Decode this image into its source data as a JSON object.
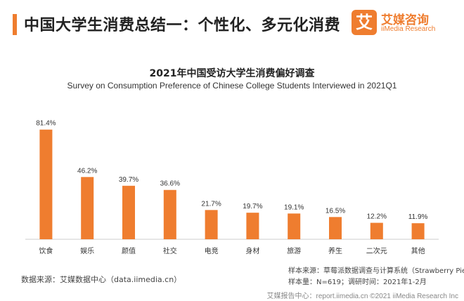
{
  "header": {
    "title": "中国大学生消费总结一：个性化、多元化消费",
    "accent_color": "#ef7d2f"
  },
  "logo": {
    "mark": "艾",
    "name": "艾媒咨询",
    "sub": "iiMedia Research"
  },
  "chart_data": {
    "type": "bar",
    "title": "2021年中国受访大学生消费偏好调查",
    "subtitle": "Survey on Consumption Preference of Chinese College Students Interviewed in 2021Q1",
    "categories": [
      "饮食",
      "娱乐",
      "颜值",
      "社交",
      "电竞",
      "身材",
      "旅游",
      "养生",
      "二次元",
      "其他"
    ],
    "values": [
      81.4,
      46.2,
      39.7,
      36.6,
      21.7,
      19.7,
      19.1,
      16.5,
      12.2,
      11.9
    ],
    "value_labels": [
      "81.4%",
      "46.2%",
      "39.7%",
      "36.6%",
      "21.7%",
      "19.7%",
      "19.1%",
      "16.5%",
      "12.2%",
      "11.9%"
    ],
    "bar_color": "#ef7d2f",
    "ylim": [
      0,
      100
    ],
    "grid": false
  },
  "source": {
    "left": "数据来源：艾媒数据中心（data.iimedia.cn）",
    "sample_source": "样本来源：草莓派数据调查与计算系统（Strawberry Pie）",
    "sample_info": "样本量：N=619；调研时间：2021年1-2月"
  },
  "footer": "艾媒报告中心：report.iimedia.cn ©2021 iiMedia Research Inc"
}
